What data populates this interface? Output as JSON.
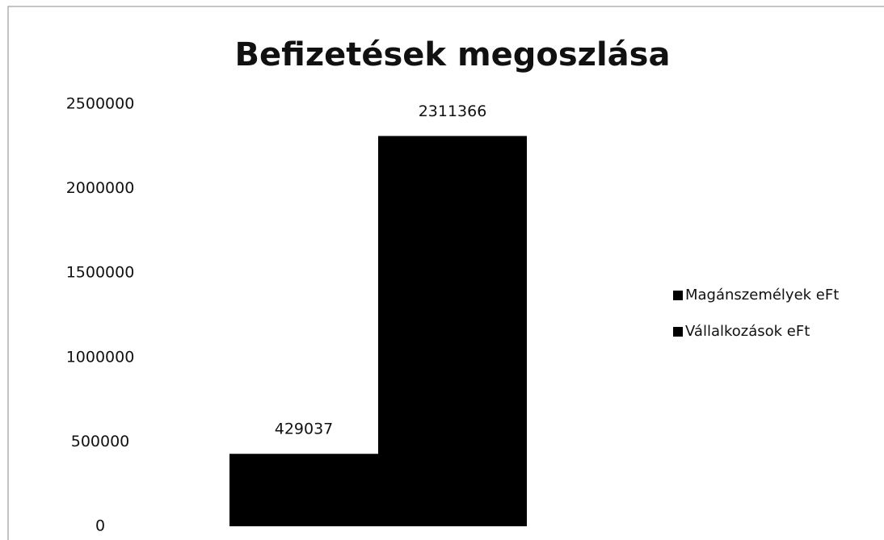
{
  "chart_data": {
    "type": "bar",
    "title": "Befizetések megoszlása",
    "categories": [
      null
    ],
    "series": [
      {
        "name": "Magánszemélyek eFt",
        "color": "#000000",
        "values": [
          429037
        ]
      },
      {
        "name": "Vállalkozások eFt",
        "color": "#000000",
        "values": [
          2311366
        ]
      }
    ],
    "ylim": [
      0,
      2500000
    ],
    "yticks": [
      0,
      500000,
      1000000,
      1500000,
      2000000,
      2500000
    ],
    "grid": false,
    "legend": "right"
  }
}
